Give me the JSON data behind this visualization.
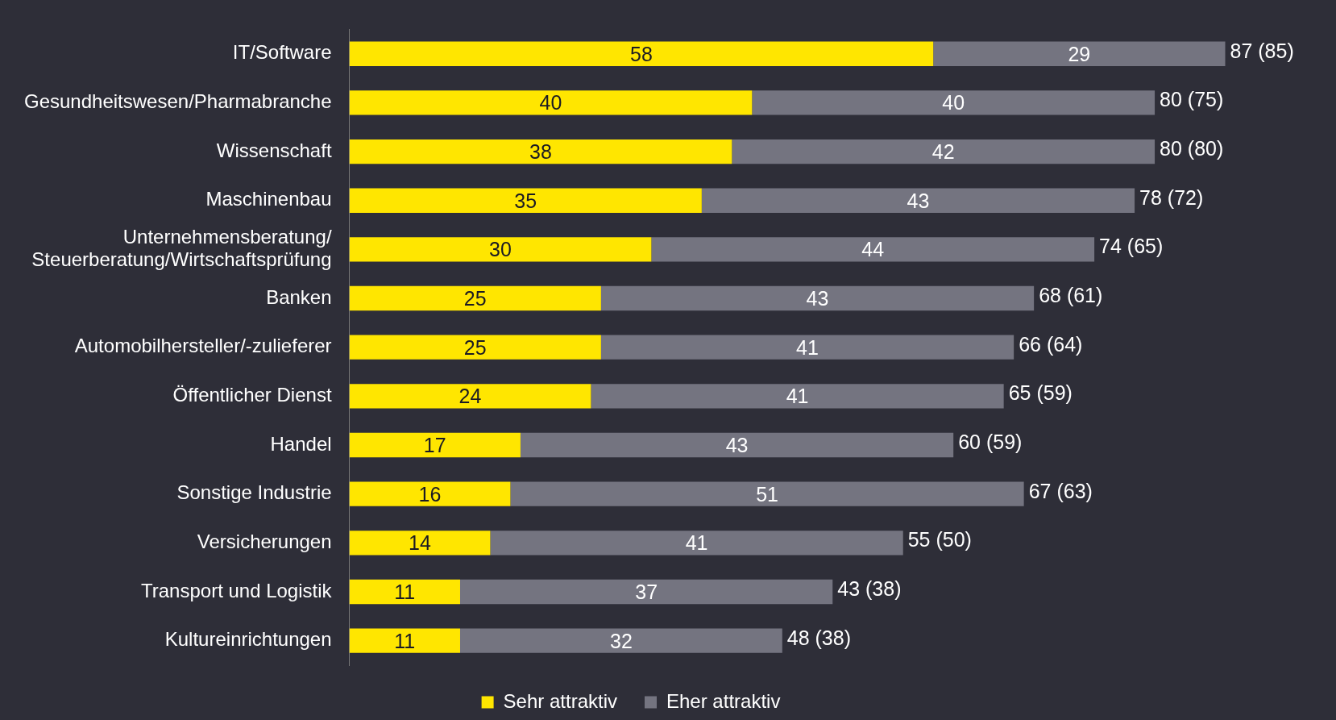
{
  "chart_data": {
    "type": "bar",
    "orientation": "horizontal",
    "stacked": true,
    "data_labels": true,
    "grid": false,
    "legend": "bottom",
    "tick_labels": "y",
    "categories": [
      "IT/Software",
      "Gesundheitswesen/Pharmabranche",
      "Wissenschaft",
      "Maschinenbau",
      "Unternehmensberatung/Steuerberatung/Wirtschaftsprüfung",
      "Banken",
      "Automobilhersteller/-zulieferer",
      "Öffentlicher Dienst",
      "Handel",
      "Sonstige Industrie",
      "Versicherungen",
      "Transport und Logistik",
      "Kultureinrichtungen"
    ],
    "series": [
      {
        "name": "Sehr attraktiv",
        "color": "#ffe600",
        "values": [
          58,
          40,
          38,
          35,
          30,
          25,
          25,
          24,
          17,
          16,
          14,
          11,
          11
        ]
      },
      {
        "name": "Eher attraktiv",
        "color": "#747480",
        "values": [
          29,
          40,
          42,
          43,
          44,
          43,
          41,
          41,
          43,
          51,
          41,
          37,
          32
        ]
      }
    ],
    "totals": [
      "87 (85)",
      "80 (75)",
      "80 (80)",
      "78 (72)",
      "74 (65)",
      "68 (61)",
      "66 (64)",
      "65 (59)",
      "60 (59)",
      "67 (63)",
      "55 (50)",
      "43 (38)",
      "48 (38)"
    ]
  }
}
